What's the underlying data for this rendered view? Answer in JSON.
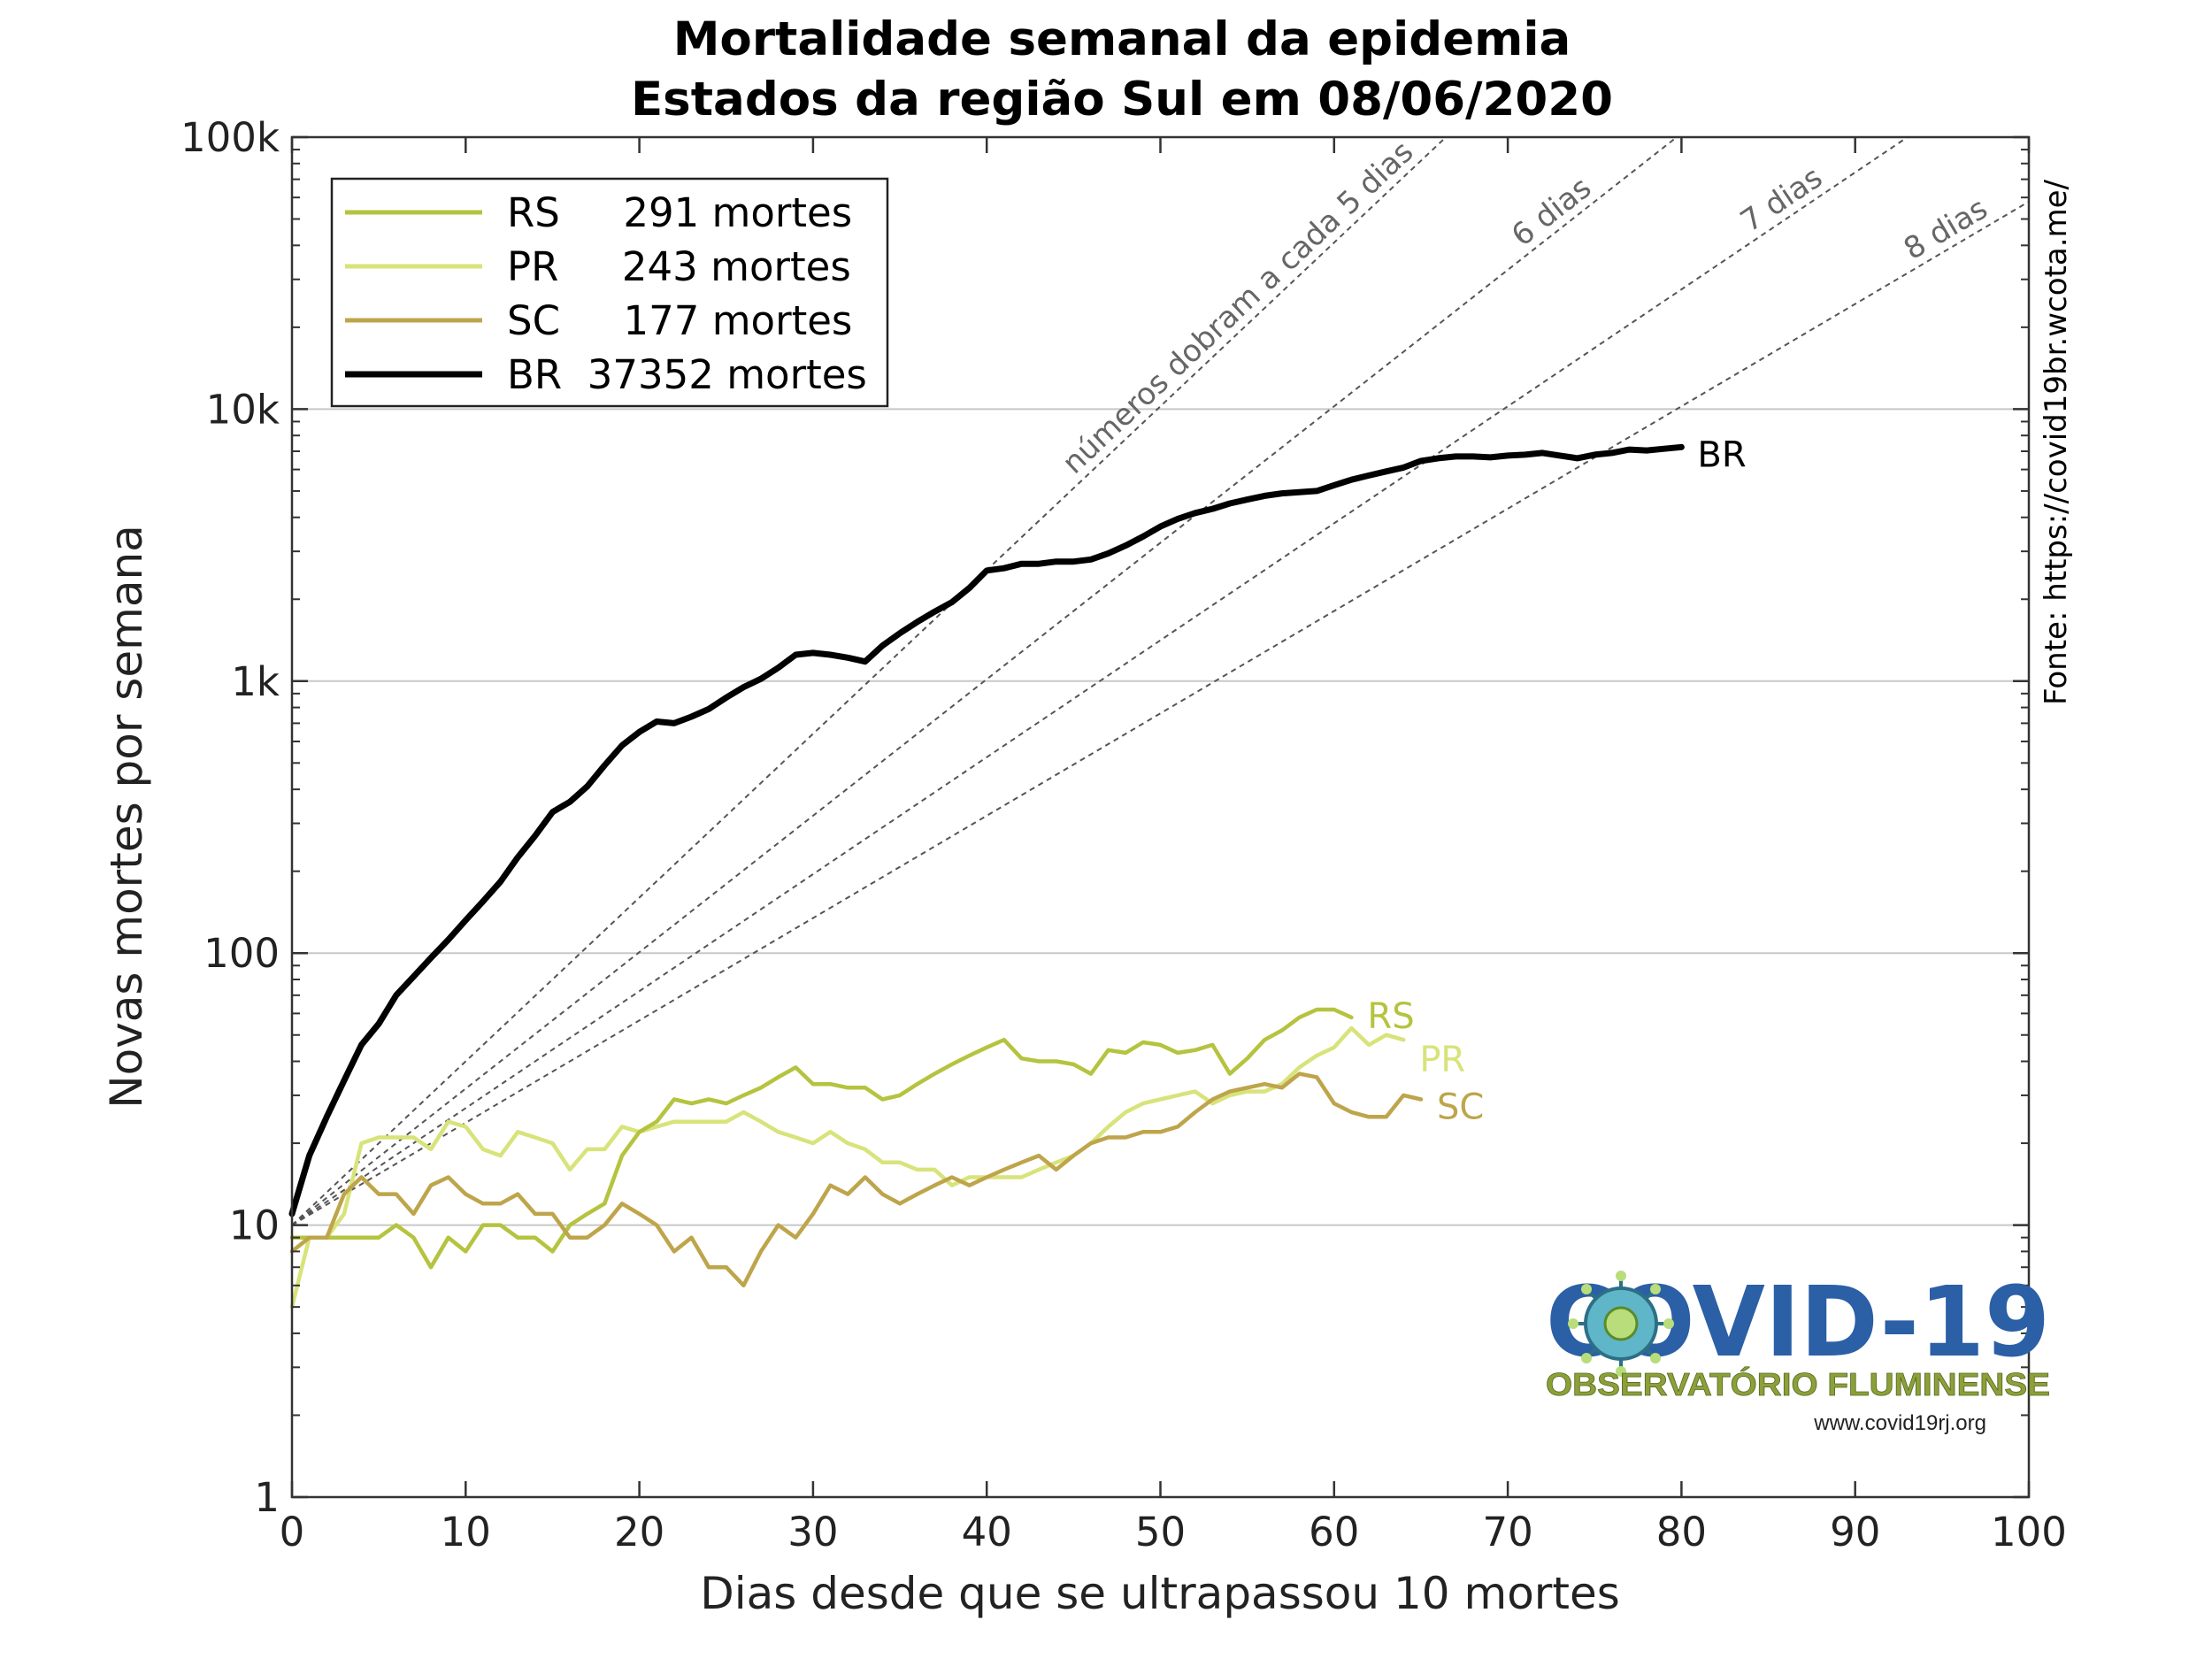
{
  "chart_data": {
    "type": "line",
    "title": [
      "Mortalidade semanal da epidemia",
      "Estados da região Sul em 08/06/2020"
    ],
    "xlabel": "Dias desde que se ultrapassou 10 mortes",
    "ylabel": "Novas mortes por semana",
    "xlim": [
      0,
      100
    ],
    "ylim": [
      1,
      100000
    ],
    "yscale": "log",
    "xticks": [
      0,
      10,
      20,
      30,
      40,
      50,
      60,
      70,
      80,
      90,
      100
    ],
    "xtick_labels": [
      "0",
      "10",
      "20",
      "30",
      "40",
      "50",
      "60",
      "70",
      "80",
      "90",
      "100"
    ],
    "yticks": [
      1,
      10,
      100,
      1000,
      10000,
      100000
    ],
    "ytick_labels": [
      "1",
      "10",
      "100",
      "1k",
      "10k",
      "100k"
    ],
    "grid": "horizontal",
    "legend_position": "top-left",
    "legend": [
      {
        "name": "RS",
        "label": "RS     291 mortes",
        "color": "#b5c33f"
      },
      {
        "name": "PR",
        "label": "PR     243 mortes",
        "color": "#d8e37a"
      },
      {
        "name": "SC",
        "label": "SC     177 mortes",
        "color": "#bea54b"
      },
      {
        "name": "BR",
        "label": "BR  37352 mortes",
        "color": "#000000"
      }
    ],
    "series": [
      {
        "name": "BR",
        "end_label": "BR",
        "color": "#000000",
        "x": [
          0,
          1,
          2,
          3,
          4,
          5,
          6,
          7,
          8,
          9,
          10,
          11,
          12,
          13,
          14,
          15,
          16,
          17,
          18,
          19,
          20,
          21,
          22,
          23,
          24,
          25,
          26,
          27,
          28,
          29,
          30,
          31,
          32,
          33,
          34,
          35,
          36,
          37,
          38,
          39,
          40,
          41,
          42,
          43,
          44,
          45,
          46,
          47,
          48,
          49,
          50,
          51,
          52,
          53,
          54,
          55,
          56,
          57,
          58,
          59,
          60,
          61,
          62,
          63,
          64,
          65,
          66,
          67,
          68,
          69,
          70,
          71,
          72,
          73,
          74,
          75,
          76,
          77,
          78,
          79,
          80
        ],
        "y": [
          11,
          18,
          25,
          34,
          46,
          55,
          70,
          82,
          96,
          112,
          132,
          155,
          183,
          225,
          270,
          330,
          360,
          410,
          490,
          580,
          650,
          710,
          700,
          740,
          790,
          870,
          950,
          1020,
          1120,
          1250,
          1270,
          1250,
          1220,
          1180,
          1350,
          1500,
          1650,
          1800,
          1950,
          2200,
          2550,
          2600,
          2700,
          2700,
          2750,
          2750,
          2800,
          2950,
          3150,
          3400,
          3700,
          3950,
          4150,
          4300,
          4500,
          4650,
          4800,
          4900,
          4950,
          5000,
          5250,
          5500,
          5700,
          5900,
          6100,
          6450,
          6600,
          6700,
          6700,
          6650,
          6750,
          6800,
          6900,
          6750,
          6600,
          6800,
          6900,
          7100,
          7050,
          7150,
          7250
        ]
      },
      {
        "name": "RS",
        "end_label": "RS",
        "color": "#b5c33f",
        "x": [
          0,
          1,
          2,
          3,
          4,
          5,
          6,
          7,
          8,
          9,
          10,
          11,
          12,
          13,
          14,
          15,
          16,
          17,
          18,
          19,
          20,
          21,
          22,
          23,
          24,
          25,
          26,
          27,
          28,
          29,
          30,
          31,
          32,
          33,
          34,
          35,
          36,
          37,
          38,
          39,
          40,
          41,
          42,
          43,
          44,
          45,
          46,
          47,
          48,
          49,
          50,
          51,
          52,
          53,
          54,
          55,
          56,
          57,
          58,
          59,
          60,
          61
        ],
        "y": [
          9,
          9,
          9,
          9,
          9,
          9,
          10,
          9,
          7,
          9,
          8,
          10,
          10,
          9,
          9,
          8,
          10,
          11,
          12,
          18,
          22,
          24,
          29,
          28,
          29,
          28,
          30,
          32,
          35,
          38,
          33,
          33,
          32,
          32,
          29,
          30,
          33,
          36,
          39,
          42,
          45,
          48,
          41,
          40,
          40,
          39,
          36,
          44,
          43,
          47,
          46,
          43,
          44,
          46,
          36,
          41,
          48,
          52,
          58,
          62,
          62,
          58
        ]
      },
      {
        "name": "PR",
        "end_label": "PR",
        "color": "#d8e37a",
        "x": [
          0,
          1,
          2,
          3,
          4,
          5,
          6,
          7,
          8,
          9,
          10,
          11,
          12,
          13,
          14,
          15,
          16,
          17,
          18,
          19,
          20,
          21,
          22,
          23,
          24,
          25,
          26,
          27,
          28,
          29,
          30,
          31,
          32,
          33,
          34,
          35,
          36,
          37,
          38,
          39,
          40,
          41,
          42,
          43,
          44,
          45,
          46,
          47,
          48,
          49,
          50,
          51,
          52,
          53,
          54,
          55,
          56,
          57,
          58,
          59,
          60,
          61,
          62,
          63,
          64
        ],
        "y": [
          5,
          9,
          9,
          11,
          20,
          21,
          21,
          21,
          19,
          24,
          23,
          19,
          18,
          22,
          21,
          20,
          16,
          19,
          19,
          23,
          22,
          23,
          24,
          24,
          24,
          24,
          26,
          24,
          22,
          21,
          20,
          22,
          20,
          19,
          17,
          17,
          16,
          16,
          14,
          15,
          15,
          15,
          15,
          16,
          17,
          18,
          20,
          23,
          26,
          28,
          29,
          30,
          31,
          28,
          30,
          31,
          31,
          33,
          38,
          42,
          45,
          53,
          46,
          50,
          48
        ]
      },
      {
        "name": "SC",
        "end_label": "SC",
        "color": "#bea54b",
        "x": [
          0,
          1,
          2,
          3,
          4,
          5,
          6,
          7,
          8,
          9,
          10,
          11,
          12,
          13,
          14,
          15,
          16,
          17,
          18,
          19,
          20,
          21,
          22,
          23,
          24,
          25,
          26,
          27,
          28,
          29,
          30,
          31,
          32,
          33,
          34,
          35,
          36,
          37,
          38,
          39,
          40,
          41,
          42,
          43,
          44,
          45,
          46,
          47,
          48,
          49,
          50,
          51,
          52,
          53,
          54,
          55,
          56,
          57,
          58,
          59,
          60,
          61,
          62,
          63,
          64,
          65
        ],
        "y": [
          8,
          9,
          9,
          13,
          15,
          13,
          13,
          11,
          14,
          15,
          13,
          12,
          12,
          13,
          11,
          11,
          9,
          9,
          10,
          12,
          11,
          10,
          8,
          9,
          7,
          7,
          6,
          8,
          10,
          9,
          11,
          14,
          13,
          15,
          13,
          12,
          13,
          14,
          15,
          14,
          15,
          16,
          17,
          18,
          16,
          18,
          20,
          21,
          21,
          22,
          22,
          23,
          26,
          29,
          31,
          32,
          33,
          32,
          36,
          35,
          28,
          26,
          25,
          25,
          30,
          29
        ]
      }
    ],
    "guides": [
      {
        "label": "números dobram a cada 5 dias",
        "doubling_days": 5
      },
      {
        "label": "6 dias",
        "doubling_days": 6
      },
      {
        "label": "7 dias",
        "doubling_days": 7
      },
      {
        "label": "8 dias",
        "doubling_days": 8
      }
    ],
    "source": "Fonte: https://covid19br.wcota.me/"
  },
  "logo": {
    "title": "COVID-19",
    "subtitle": "OBSERVATÓRIO FLUMINENSE",
    "url": "www.covid19rj.org"
  }
}
